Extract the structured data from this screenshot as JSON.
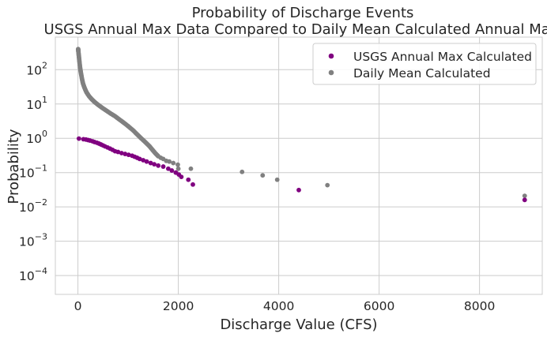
{
  "chart_data": {
    "type": "scatter",
    "title_line1": "Probability of Discharge Events",
    "title_line2": "USGS Annual Max Data Compared to Daily Mean Calculated Annual Max",
    "xlabel": "Discharge Value (CFS)",
    "ylabel": "Probability",
    "xlim": [
      -450,
      9250
    ],
    "ylim_log10": [
      -4.55,
      2.95
    ],
    "yscale": "log",
    "x_ticks": [
      0,
      2000,
      4000,
      6000,
      8000
    ],
    "x_tick_labels": [
      "0",
      "2000",
      "4000",
      "6000",
      "8000"
    ],
    "y_ticks": [
      {
        "exp": 2,
        "base": "10",
        "sup": "2"
      },
      {
        "exp": 1,
        "base": "10",
        "sup": "1"
      },
      {
        "exp": 0,
        "base": "10",
        "sup": "0"
      },
      {
        "exp": -1,
        "base": "10",
        "sup": "−1"
      },
      {
        "exp": -2,
        "base": "10",
        "sup": "−2"
      },
      {
        "exp": -3,
        "base": "10",
        "sup": "−3"
      },
      {
        "exp": -4,
        "base": "10",
        "sup": "−4"
      }
    ],
    "grid": true,
    "legend_position": "top-right",
    "series": [
      {
        "name": "USGS Annual Max Calculated",
        "color": "#800080",
        "points": [
          [
            20,
            0.98
          ],
          [
            110,
            0.94
          ],
          [
            160,
            0.92
          ],
          [
            200,
            0.89
          ],
          [
            240,
            0.86
          ],
          [
            290,
            0.82
          ],
          [
            330,
            0.78
          ],
          [
            380,
            0.74
          ],
          [
            420,
            0.7
          ],
          [
            460,
            0.66
          ],
          [
            500,
            0.62
          ],
          [
            540,
            0.58
          ],
          [
            590,
            0.54
          ],
          [
            640,
            0.5
          ],
          [
            690,
            0.46
          ],
          [
            740,
            0.42
          ],
          [
            800,
            0.4
          ],
          [
            870,
            0.37
          ],
          [
            940,
            0.35
          ],
          [
            1010,
            0.33
          ],
          [
            1080,
            0.31
          ],
          [
            1130,
            0.29
          ],
          [
            1180,
            0.27
          ],
          [
            1230,
            0.25
          ],
          [
            1300,
            0.23
          ],
          [
            1370,
            0.21
          ],
          [
            1450,
            0.19
          ],
          [
            1520,
            0.175
          ],
          [
            1600,
            0.16
          ],
          [
            1700,
            0.15
          ],
          [
            1800,
            0.13
          ],
          [
            1870,
            0.115
          ],
          [
            1950,
            0.1
          ],
          [
            2010,
            0.088
          ],
          [
            2060,
            0.075
          ],
          [
            2200,
            0.062
          ],
          [
            2290,
            0.045
          ],
          [
            4400,
            0.031
          ],
          [
            8900,
            0.016
          ]
        ]
      },
      {
        "name": "Daily Mean Calculated",
        "color": "#808080",
        "curve": [
          [
            5,
            400
          ],
          [
            10,
            330
          ],
          [
            20,
            240
          ],
          [
            30,
            170
          ],
          [
            45,
            110
          ],
          [
            60,
            80
          ],
          [
            80,
            55
          ],
          [
            100,
            40
          ],
          [
            130,
            30
          ],
          [
            170,
            22
          ],
          [
            220,
            17
          ],
          [
            270,
            14
          ],
          [
            330,
            11.5
          ],
          [
            400,
            9.5
          ],
          [
            480,
            7.8
          ],
          [
            560,
            6.5
          ],
          [
            650,
            5.3
          ],
          [
            740,
            4.4
          ],
          [
            830,
            3.5
          ],
          [
            920,
            2.8
          ],
          [
            1010,
            2.2
          ],
          [
            1100,
            1.7
          ],
          [
            1180,
            1.3
          ],
          [
            1260,
            1.0
          ],
          [
            1340,
            0.78
          ],
          [
            1420,
            0.6
          ],
          [
            1480,
            0.47
          ],
          [
            1540,
            0.37
          ],
          [
            1600,
            0.3
          ]
        ],
        "curve_count": 140,
        "points": [
          [
            1650,
            0.27
          ],
          [
            1700,
            0.25
          ],
          [
            1760,
            0.22
          ],
          [
            1820,
            0.21
          ],
          [
            1900,
            0.19
          ],
          [
            1990,
            0.17
          ],
          [
            2000,
            0.13
          ],
          [
            2250,
            0.13
          ],
          [
            3270,
            0.105
          ],
          [
            3680,
            0.083
          ],
          [
            3970,
            0.062
          ],
          [
            4970,
            0.043
          ],
          [
            8900,
            0.021
          ]
        ]
      }
    ]
  }
}
